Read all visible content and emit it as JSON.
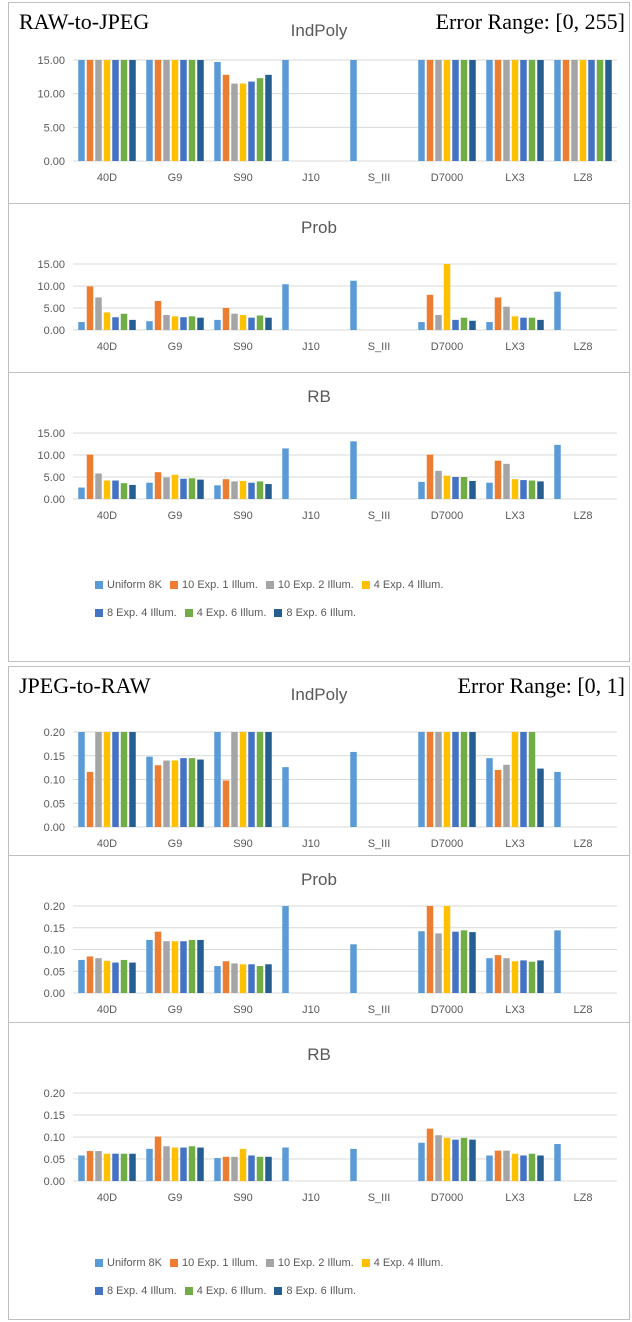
{
  "sections": [
    {
      "header_left": "RAW-to-JPEG",
      "header_right": "Error Range: [0, 255]",
      "legend_rows": [
        [
          "Uniform 8K",
          "10 Exp. 1 Illum.",
          "10 Exp. 2 Illum.",
          "4 Exp. 4 Illum."
        ],
        [
          "8 Exp. 4 Illum.",
          "4 Exp. 6 Illum.",
          "8 Exp. 6 Illum."
        ]
      ]
    },
    {
      "header_left": "JPEG-to-RAW",
      "header_right": "Error Range: [0, 1]",
      "legend_rows": [
        [
          "Uniform 8K",
          "10 Exp. 1 Illum.",
          "10 Exp. 2 Illum.",
          "4 Exp. 4 Illum."
        ],
        [
          "8 Exp. 4 Illum.",
          "4 Exp. 6 Illum.",
          "8 Exp. 6 Illum."
        ]
      ]
    }
  ],
  "colors": [
    "#5b9bd5",
    "#ed7d31",
    "#a5a5a5",
    "#ffc000",
    "#4472c4",
    "#70ad47",
    "#255e91"
  ],
  "chart_data": [
    {
      "type": "bar",
      "title": "IndPoly",
      "categories": [
        "40D",
        "G9",
        "S90",
        "J10",
        "S_III",
        "D7000",
        "LX3",
        "LZ8"
      ],
      "yticks": [
        "0.00",
        "5.00",
        "10.00",
        "15.00"
      ],
      "ylim": [
        0,
        15
      ],
      "series": [
        {
          "name": "Uniform 8K",
          "values": [
            15,
            15,
            14.7,
            15,
            15,
            15,
            15,
            15
          ]
        },
        {
          "name": "10 Exp. 1 Illum.",
          "values": [
            15,
            15,
            12.8,
            null,
            null,
            15,
            15,
            15
          ]
        },
        {
          "name": "10 Exp. 2 Illum.",
          "values": [
            15,
            15,
            11.5,
            null,
            null,
            15,
            15,
            15
          ]
        },
        {
          "name": "4 Exp. 4 Illum.",
          "values": [
            15,
            15,
            11.5,
            null,
            null,
            15,
            15,
            15
          ]
        },
        {
          "name": "8 Exp. 4 Illum.",
          "values": [
            15,
            15,
            11.8,
            null,
            null,
            15,
            15,
            15
          ]
        },
        {
          "name": "4 Exp. 6 Illum.",
          "values": [
            15,
            15,
            12.3,
            null,
            null,
            15,
            15,
            15
          ]
        },
        {
          "name": "8 Exp. 6 Illum.",
          "values": [
            15,
            15,
            12.8,
            null,
            null,
            15,
            15,
            15
          ]
        }
      ]
    },
    {
      "type": "bar",
      "title": "Prob",
      "categories": [
        "40D",
        "G9",
        "S90",
        "J10",
        "S_III",
        "D7000",
        "LX3",
        "LZ8"
      ],
      "yticks": [
        "0.00",
        "5.00",
        "10.00",
        "15.00"
      ],
      "ylim": [
        0,
        15
      ],
      "series": [
        {
          "name": "Uniform 8K",
          "values": [
            1.8,
            2.0,
            2.3,
            10.4,
            11.2,
            1.8,
            1.8,
            8.7
          ]
        },
        {
          "name": "10 Exp. 1 Illum.",
          "values": [
            9.9,
            6.6,
            5.0,
            null,
            null,
            8.0,
            7.4,
            null
          ]
        },
        {
          "name": "10 Exp. 2 Illum.",
          "values": [
            7.4,
            3.4,
            3.7,
            null,
            null,
            3.4,
            5.3,
            null
          ]
        },
        {
          "name": "4 Exp. 4 Illum.",
          "values": [
            4.0,
            3.1,
            3.4,
            null,
            null,
            15,
            3.1,
            null
          ]
        },
        {
          "name": "8 Exp. 4 Illum.",
          "values": [
            2.9,
            2.9,
            2.8,
            null,
            null,
            2.3,
            2.8,
            null
          ]
        },
        {
          "name": "4 Exp. 6 Illum.",
          "values": [
            3.7,
            3.1,
            3.3,
            null,
            null,
            2.8,
            2.8,
            null
          ]
        },
        {
          "name": "8 Exp. 6 Illum.",
          "values": [
            2.3,
            2.8,
            2.8,
            null,
            null,
            2.1,
            2.3,
            null
          ]
        }
      ]
    },
    {
      "type": "bar",
      "title": "RB",
      "categories": [
        "40D",
        "G9",
        "S90",
        "J10",
        "S_III",
        "D7000",
        "LX3",
        "LZ8"
      ],
      "yticks": [
        "0.00",
        "5.00",
        "10.00",
        "15.00"
      ],
      "ylim": [
        0,
        15
      ],
      "series": [
        {
          "name": "Uniform 8K",
          "values": [
            2.6,
            3.7,
            3.1,
            11.5,
            13.1,
            3.9,
            3.7,
            12.3
          ]
        },
        {
          "name": "10 Exp. 1 Illum.",
          "values": [
            10.1,
            6.1,
            4.5,
            null,
            null,
            10.1,
            8.7,
            null
          ]
        },
        {
          "name": "10 Exp. 2 Illum.",
          "values": [
            5.8,
            4.9,
            4.0,
            null,
            null,
            6.4,
            8.0,
            null
          ]
        },
        {
          "name": "4 Exp. 4 Illum.",
          "values": [
            4.2,
            5.5,
            4.1,
            null,
            null,
            5.3,
            4.5,
            null
          ]
        },
        {
          "name": "8 Exp. 4 Illum.",
          "values": [
            4.2,
            4.6,
            3.7,
            null,
            null,
            5.0,
            4.3,
            null
          ]
        },
        {
          "name": "4 Exp. 6 Illum.",
          "values": [
            3.6,
            4.7,
            4.0,
            null,
            null,
            5.0,
            4.2,
            null
          ]
        },
        {
          "name": "8 Exp. 6 Illum.",
          "values": [
            3.2,
            4.4,
            3.4,
            null,
            null,
            4.1,
            4.0,
            null
          ]
        }
      ]
    },
    {
      "type": "bar",
      "title": "IndPoly",
      "categories": [
        "40D",
        "G9",
        "S90",
        "J10",
        "S_III",
        "D7000",
        "LX3",
        "LZ8"
      ],
      "yticks": [
        "0.00",
        "0.05",
        "0.10",
        "0.15",
        "0.20"
      ],
      "ylim": [
        0,
        0.2
      ],
      "series": [
        {
          "name": "Uniform 8K",
          "values": [
            0.2,
            0.148,
            0.2,
            0.126,
            0.158,
            0.2,
            0.145,
            0.116
          ]
        },
        {
          "name": "10 Exp. 1 Illum.",
          "values": [
            0.116,
            0.13,
            0.098,
            null,
            null,
            0.2,
            0.12,
            null
          ]
        },
        {
          "name": "10 Exp. 2 Illum.",
          "values": [
            0.2,
            0.14,
            0.2,
            null,
            null,
            0.2,
            0.131,
            null
          ]
        },
        {
          "name": "4 Exp. 4 Illum.",
          "values": [
            0.2,
            0.14,
            0.2,
            null,
            null,
            0.2,
            0.2,
            null
          ]
        },
        {
          "name": "8 Exp. 4 Illum.",
          "values": [
            0.2,
            0.145,
            0.2,
            null,
            null,
            0.2,
            0.2,
            null
          ]
        },
        {
          "name": "4 Exp. 6 Illum.",
          "values": [
            0.2,
            0.145,
            0.2,
            null,
            null,
            0.2,
            0.2,
            null
          ]
        },
        {
          "name": "8 Exp. 6 Illum.",
          "values": [
            0.2,
            0.142,
            0.2,
            null,
            null,
            0.2,
            0.123,
            null
          ]
        }
      ]
    },
    {
      "type": "bar",
      "title": "Prob",
      "categories": [
        "40D",
        "G9",
        "S90",
        "J10",
        "S_III",
        "D7000",
        "LX3",
        "LZ8"
      ],
      "yticks": [
        "0.00",
        "0.05",
        "0.10",
        "0.15",
        "0.20"
      ],
      "ylim": [
        0,
        0.2
      ],
      "series": [
        {
          "name": "Uniform 8K",
          "values": [
            0.076,
            0.122,
            0.062,
            0.2,
            0.112,
            0.142,
            0.08,
            0.144
          ]
        },
        {
          "name": "10 Exp. 1 Illum.",
          "values": [
            0.084,
            0.141,
            0.073,
            null,
            null,
            0.2,
            0.087,
            null
          ]
        },
        {
          "name": "10 Exp. 2 Illum.",
          "values": [
            0.08,
            0.119,
            0.068,
            null,
            null,
            0.137,
            0.08,
            null
          ]
        },
        {
          "name": "4 Exp. 4 Illum.",
          "values": [
            0.074,
            0.119,
            0.066,
            null,
            null,
            0.2,
            0.073,
            null
          ]
        },
        {
          "name": "8 Exp. 4 Illum.",
          "values": [
            0.07,
            0.119,
            0.066,
            null,
            null,
            0.141,
            0.075,
            null
          ]
        },
        {
          "name": "4 Exp. 6 Illum.",
          "values": [
            0.076,
            0.122,
            0.062,
            null,
            null,
            0.144,
            0.072,
            null
          ]
        },
        {
          "name": "8 Exp. 6 Illum.",
          "values": [
            0.07,
            0.122,
            0.066,
            null,
            null,
            0.14,
            0.075,
            null
          ]
        }
      ]
    },
    {
      "type": "bar",
      "title": "RB",
      "categories": [
        "40D",
        "G9",
        "S90",
        "J10",
        "S_III",
        "D7000",
        "LX3",
        "LZ8"
      ],
      "yticks": [
        "0.00",
        "0.05",
        "0.10",
        "0.15",
        "0.20"
      ],
      "ylim": [
        0,
        0.2
      ],
      "series": [
        {
          "name": "Uniform 8K",
          "values": [
            0.058,
            0.073,
            0.052,
            0.076,
            0.073,
            0.087,
            0.058,
            0.084
          ]
        },
        {
          "name": "10 Exp. 1 Illum.",
          "values": [
            0.068,
            0.101,
            0.055,
            null,
            null,
            0.119,
            0.069,
            null
          ]
        },
        {
          "name": "10 Exp. 2 Illum.",
          "values": [
            0.068,
            0.079,
            0.055,
            null,
            null,
            0.104,
            0.069,
            null
          ]
        },
        {
          "name": "4 Exp. 4 Illum.",
          "values": [
            0.062,
            0.076,
            0.073,
            null,
            null,
            0.098,
            0.062,
            null
          ]
        },
        {
          "name": "8 Exp. 4 Illum.",
          "values": [
            0.062,
            0.076,
            0.058,
            null,
            null,
            0.094,
            0.058,
            null
          ]
        },
        {
          "name": "4 Exp. 6 Illum.",
          "values": [
            0.062,
            0.079,
            0.055,
            null,
            null,
            0.098,
            0.062,
            null
          ]
        },
        {
          "name": "8 Exp. 6 Illum.",
          "values": [
            0.062,
            0.076,
            0.055,
            null,
            null,
            0.094,
            0.058,
            null
          ]
        }
      ]
    }
  ]
}
